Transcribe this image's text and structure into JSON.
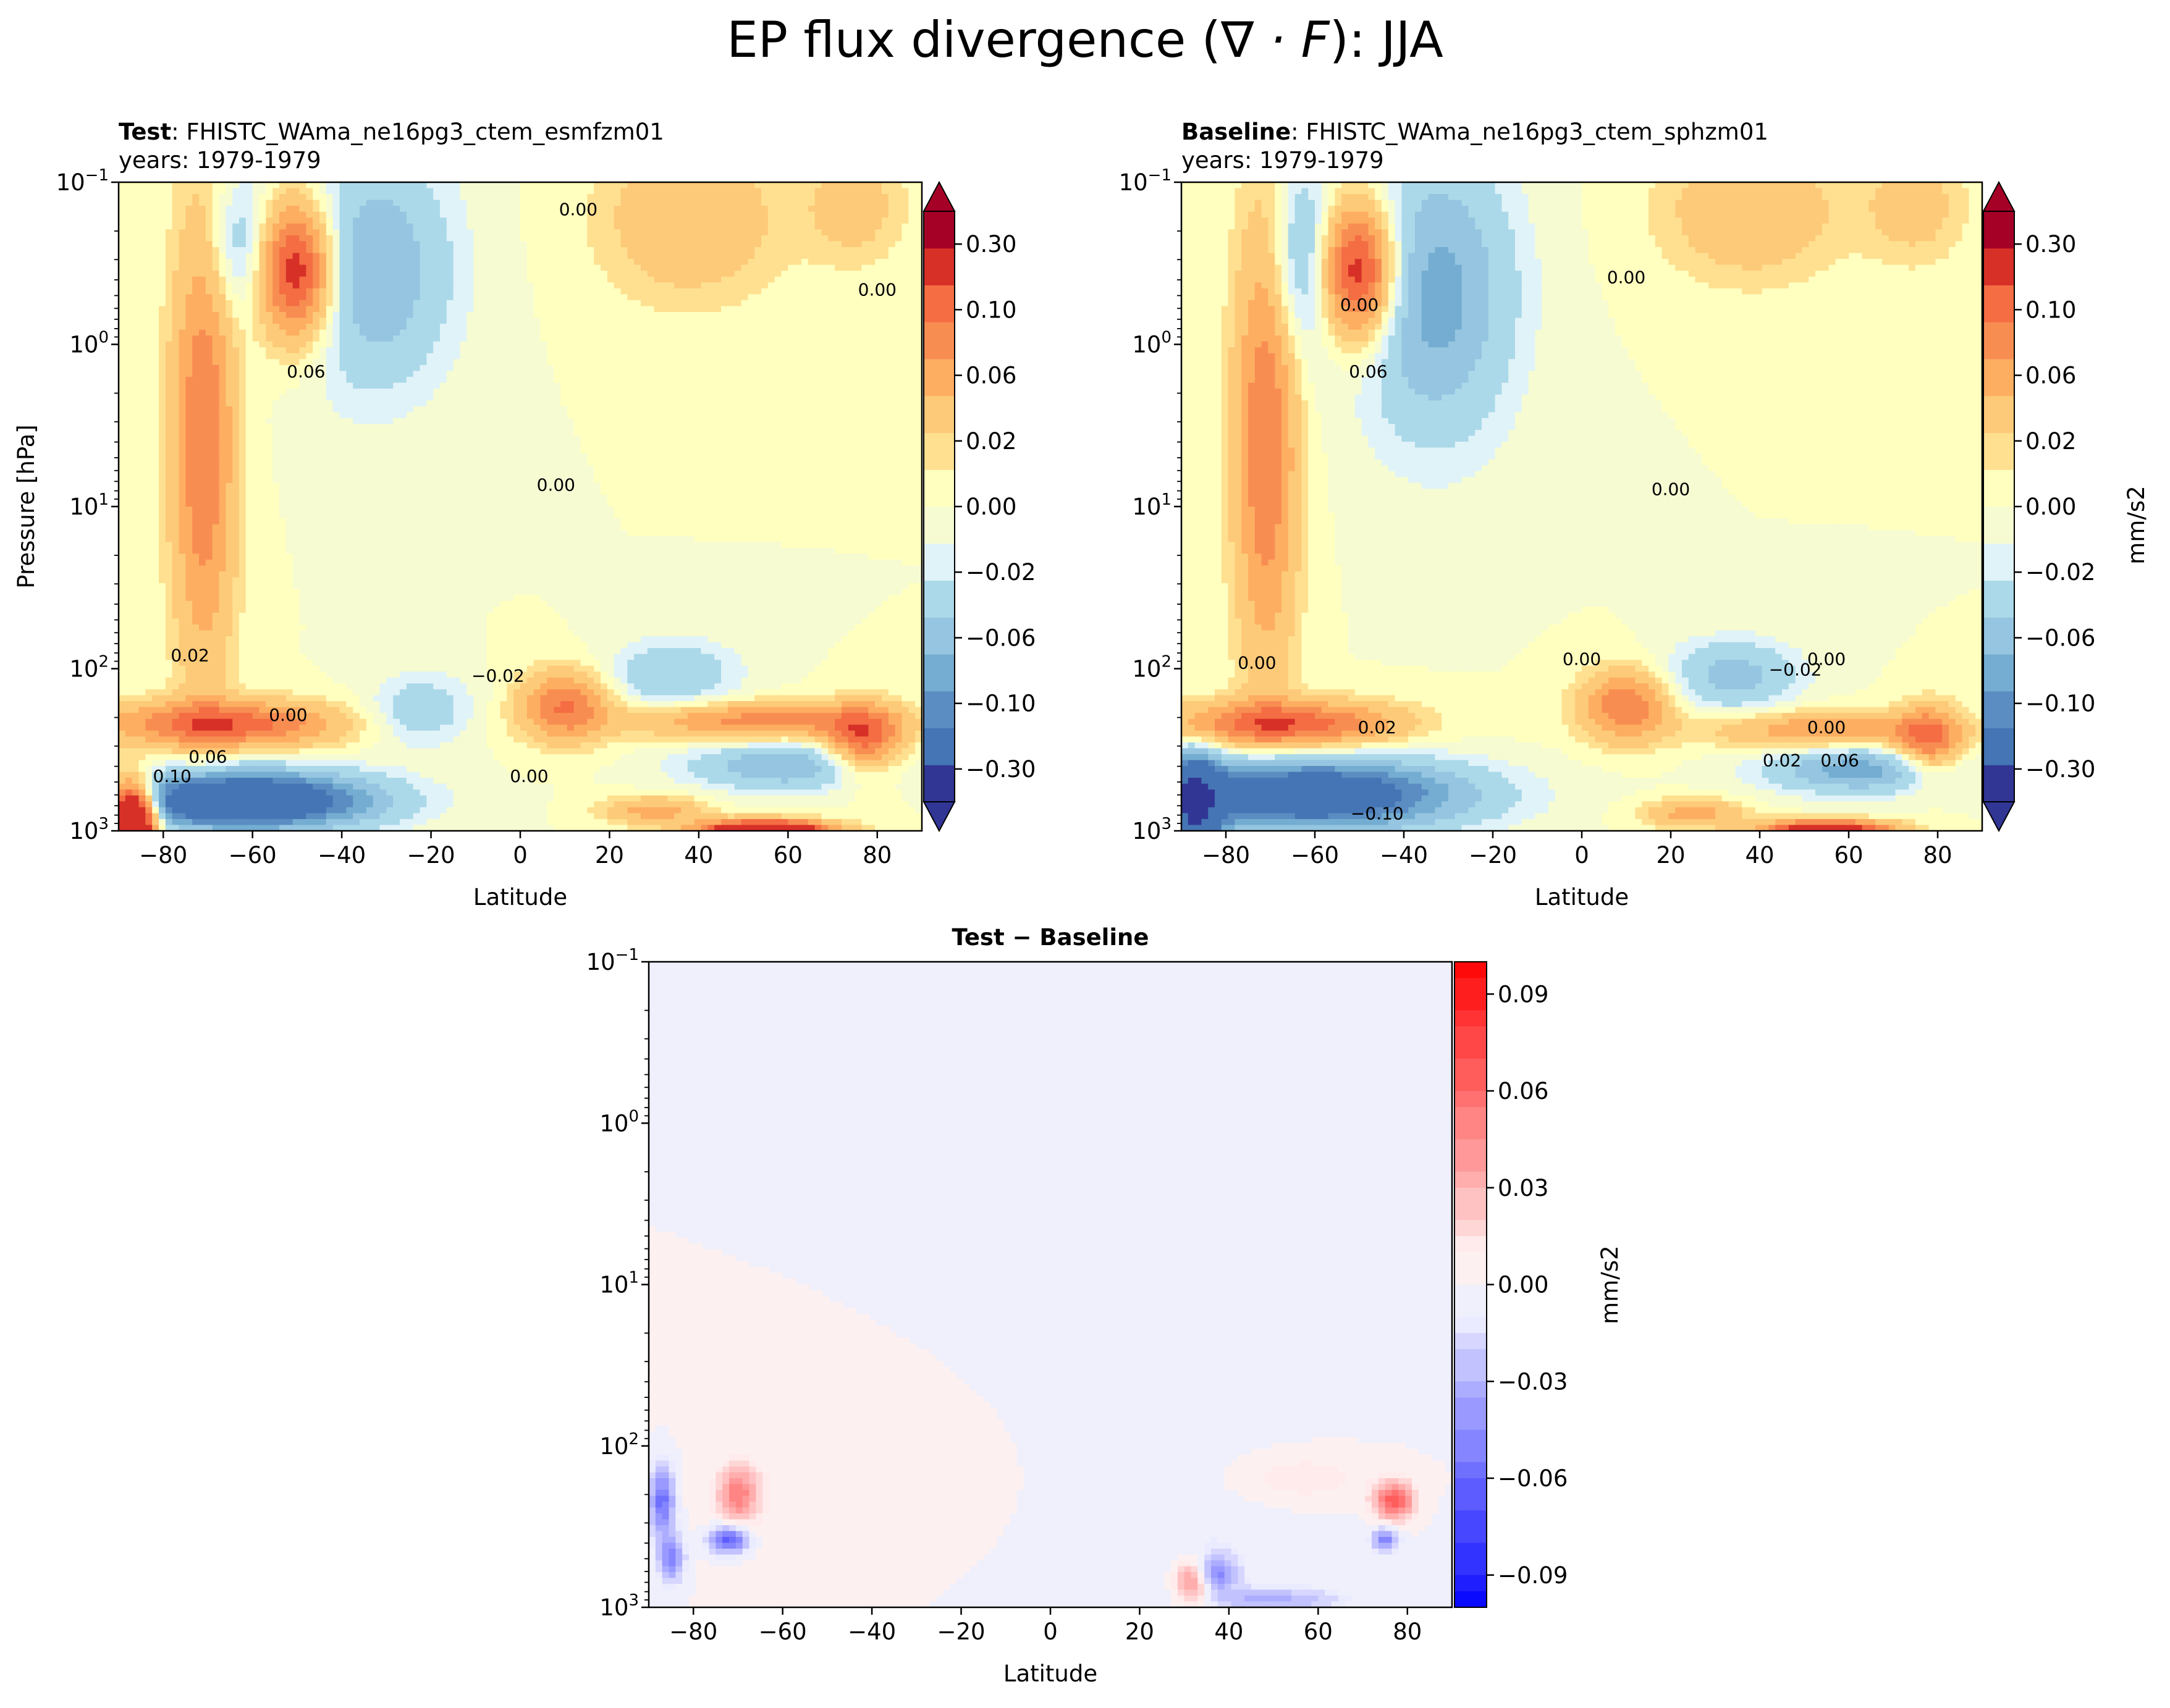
{
  "figure": {
    "title_text": "EP flux divergence (",
    "title_math": "∇ · F",
    "title_end": "): JJA"
  },
  "chart_data": [
    {
      "type": "heatmap",
      "panel": "test",
      "title_bold": "Test",
      "title_sep": ": ",
      "title_rest": "FHISTC_WAma_ne16pg3_ctem_esmfzm01",
      "subtitle": "years: 1979-1979",
      "xlabel": "Latitude",
      "ylabel": "Pressure [hPa]",
      "xlim": [
        -90,
        90
      ],
      "ylim": [
        1000,
        0.1
      ],
      "yscale": "log",
      "x_ticks": [
        "−80",
        "−60",
        "−40",
        "−20",
        "0",
        "20",
        "40",
        "60",
        "80"
      ],
      "x_tick_values": [
        -80,
        -60,
        -40,
        -20,
        0,
        20,
        40,
        60,
        80
      ],
      "y_ticks": [
        {
          "base": "10",
          "exp": "−1",
          "value": 0.1
        },
        {
          "base": "10",
          "exp": "0",
          "value": 1
        },
        {
          "base": "10",
          "exp": "1",
          "value": 10
        },
        {
          "base": "10",
          "exp": "2",
          "value": 100
        },
        {
          "base": "10",
          "exp": "3",
          "value": 1000
        }
      ],
      "colorbar": {
        "ticks": [
          "0.30",
          "0.10",
          "0.06",
          "0.02",
          "0.00",
          "−0.02",
          "−0.06",
          "−0.10",
          "−0.30"
        ],
        "levels": [
          -0.3,
          -0.2,
          -0.1,
          -0.08,
          -0.06,
          -0.04,
          -0.02,
          -0.01,
          0.0,
          0.01,
          0.02,
          0.04,
          0.06,
          0.08,
          0.1,
          0.2,
          0.3
        ],
        "colors": [
          "#313695",
          "#4575b4",
          "#5b8dc2",
          "#74add1",
          "#95c5e0",
          "#abd9e9",
          "#e0f3f8",
          "#f6fbd2",
          "#ffffbf",
          "#fee090",
          "#fdca79",
          "#fdae61",
          "#f88d52",
          "#f46d43",
          "#d73027",
          "#a50026"
        ],
        "extend": "both",
        "label": ""
      },
      "contour_labels": [
        {
          "text": "0.00",
          "lat": 13,
          "p": 0.16
        },
        {
          "text": "0.00",
          "lat": 80,
          "p": 0.5
        },
        {
          "text": "0.06",
          "lat": -48,
          "p": 1.6
        },
        {
          "text": "0.00",
          "lat": 8,
          "p": 8.0
        },
        {
          "text": "0.02",
          "lat": -74,
          "p": 90
        },
        {
          "text": "0.00",
          "lat": -52,
          "p": 210
        },
        {
          "text": "−0.02",
          "lat": -5,
          "p": 120
        },
        {
          "text": "0.00",
          "lat": 2,
          "p": 500
        },
        {
          "text": "0.06",
          "lat": -70,
          "p": 380
        },
        {
          "text": "0.10",
          "lat": -78,
          "p": 500
        }
      ],
      "fields": [
        {
          "lat": -71,
          "p": 4,
          "slat": 5,
          "slogp": 1.0,
          "a": 0.08
        },
        {
          "lat": -50,
          "p": 0.35,
          "slat": 6,
          "slogp": 0.3,
          "a": 0.13
        },
        {
          "lat": -63,
          "p": 0.25,
          "slat": 5,
          "slogp": 0.3,
          "a": -0.04
        },
        {
          "lat": -33,
          "p": 0.35,
          "slat": 12,
          "slogp": 0.5,
          "a": -0.06
        },
        {
          "lat": 38,
          "p": 0.17,
          "slat": 14,
          "slogp": 0.35,
          "a": 0.04
        },
        {
          "lat": 75,
          "p": 0.14,
          "slat": 8,
          "slogp": 0.25,
          "a": 0.03
        },
        {
          "lat": -62,
          "p": 220,
          "slat": 22,
          "slogp": 0.1,
          "a": 0.1
        },
        {
          "lat": -38,
          "p": 220,
          "slat": 14,
          "slogp": 0.1,
          "a": -0.03
        },
        {
          "lat": -22,
          "p": 180,
          "slat": 8,
          "slogp": 0.15,
          "a": -0.035
        },
        {
          "lat": 10,
          "p": 170,
          "slat": 7,
          "slogp": 0.15,
          "a": 0.08
        },
        {
          "lat": 34,
          "p": 110,
          "slat": 10,
          "slogp": 0.15,
          "a": -0.04
        },
        {
          "lat": 53,
          "p": 210,
          "slat": 20,
          "slogp": 0.08,
          "a": 0.07
        },
        {
          "lat": 77,
          "p": 280,
          "slat": 6,
          "slogp": 0.15,
          "a": 0.09
        },
        {
          "lat": 60,
          "p": 400,
          "slat": 15,
          "slogp": 0.1,
          "a": -0.06
        },
        {
          "lat": -63,
          "p": 650,
          "slat": 20,
          "slogp": 0.12,
          "a": -0.18
        },
        {
          "lat": -87,
          "p": 800,
          "slat": 4,
          "slogp": 0.15,
          "a": 0.25
        },
        {
          "lat": 30,
          "p": 750,
          "slat": 8,
          "slogp": 0.06,
          "a": 0.05
        },
        {
          "lat": 55,
          "p": 980,
          "slat": 10,
          "slogp": 0.04,
          "a": 0.18
        }
      ]
    },
    {
      "type": "heatmap",
      "panel": "baseline",
      "title_bold": "Baseline",
      "title_sep": ": ",
      "title_rest": "FHISTC_WAma_ne16pg3_ctem_sphzm01",
      "subtitle": "years: 1979-1979",
      "xlabel": "Latitude",
      "ylabel": "",
      "xlim": [
        -90,
        90
      ],
      "ylim": [
        1000,
        0.1
      ],
      "yscale": "log",
      "x_ticks": [
        "−80",
        "−60",
        "−40",
        "−20",
        "0",
        "20",
        "40",
        "60",
        "80"
      ],
      "x_tick_values": [
        -80,
        -60,
        -40,
        -20,
        0,
        20,
        40,
        60,
        80
      ],
      "y_ticks": [
        {
          "base": "10",
          "exp": "−1",
          "value": 0.1
        },
        {
          "base": "10",
          "exp": "0",
          "value": 1
        },
        {
          "base": "10",
          "exp": "1",
          "value": 10
        },
        {
          "base": "10",
          "exp": "2",
          "value": 100
        },
        {
          "base": "10",
          "exp": "3",
          "value": 1000
        }
      ],
      "colorbar": {
        "ticks": [
          "0.30",
          "0.10",
          "0.06",
          "0.02",
          "0.00",
          "−0.02",
          "−0.06",
          "−0.10",
          "−0.30"
        ],
        "levels": [
          -0.3,
          -0.2,
          -0.1,
          -0.08,
          -0.06,
          -0.04,
          -0.02,
          -0.01,
          0.0,
          0.01,
          0.02,
          0.04,
          0.06,
          0.08,
          0.1,
          0.2,
          0.3
        ],
        "colors": [
          "#313695",
          "#4575b4",
          "#5b8dc2",
          "#74add1",
          "#95c5e0",
          "#abd9e9",
          "#e0f3f8",
          "#f6fbd2",
          "#ffffbf",
          "#fee090",
          "#fdca79",
          "#fdae61",
          "#f88d52",
          "#f46d43",
          "#d73027",
          "#a50026"
        ],
        "extend": "both",
        "label": "mm/s2"
      },
      "contour_labels": [
        {
          "text": "0.00",
          "lat": -50,
          "p": 0.62
        },
        {
          "text": "0.06",
          "lat": -48,
          "p": 1.6
        },
        {
          "text": "0.00",
          "lat": 10,
          "p": 0.42
        },
        {
          "text": "0.00",
          "lat": 20,
          "p": 8.5
        },
        {
          "text": "0.00",
          "lat": -73,
          "p": 100
        },
        {
          "text": "0.00",
          "lat": 0,
          "p": 95
        },
        {
          "text": "0.00",
          "lat": 55,
          "p": 95
        },
        {
          "text": "−0.02",
          "lat": 48,
          "p": 110
        },
        {
          "text": "0.02",
          "lat": -46,
          "p": 250
        },
        {
          "text": "0.02",
          "lat": 45,
          "p": 400
        },
        {
          "text": "0.06",
          "lat": 58,
          "p": 400
        },
        {
          "text": "0.00",
          "lat": 55,
          "p": 250
        },
        {
          "text": "−0.10",
          "lat": -46,
          "p": 850
        }
      ],
      "fields": [
        {
          "lat": -71,
          "p": 4,
          "slat": 5,
          "slogp": 1.0,
          "a": 0.08
        },
        {
          "lat": -50,
          "p": 0.35,
          "slat": 6,
          "slogp": 0.3,
          "a": 0.13
        },
        {
          "lat": -63,
          "p": 0.3,
          "slat": 5,
          "slogp": 0.4,
          "a": -0.05
        },
        {
          "lat": -33,
          "p": 0.5,
          "slat": 12,
          "slogp": 0.6,
          "a": -0.07
        },
        {
          "lat": 38,
          "p": 0.15,
          "slat": 14,
          "slogp": 0.3,
          "a": 0.04
        },
        {
          "lat": 75,
          "p": 0.14,
          "slat": 8,
          "slogp": 0.25,
          "a": 0.03
        },
        {
          "lat": -62,
          "p": 220,
          "slat": 22,
          "slogp": 0.1,
          "a": 0.1
        },
        {
          "lat": -38,
          "p": 220,
          "slat": 14,
          "slogp": 0.1,
          "a": -0.03
        },
        {
          "lat": 10,
          "p": 170,
          "slat": 7,
          "slogp": 0.15,
          "a": 0.08
        },
        {
          "lat": 34,
          "p": 110,
          "slat": 10,
          "slogp": 0.15,
          "a": -0.05
        },
        {
          "lat": 55,
          "p": 240,
          "slat": 18,
          "slogp": 0.08,
          "a": 0.06
        },
        {
          "lat": 78,
          "p": 280,
          "slat": 5,
          "slogp": 0.15,
          "a": 0.08
        },
        {
          "lat": 62,
          "p": 420,
          "slat": 14,
          "slogp": 0.1,
          "a": -0.07
        },
        {
          "lat": -62,
          "p": 600,
          "slat": 24,
          "slogp": 0.15,
          "a": -0.15
        },
        {
          "lat": -87,
          "p": 700,
          "slat": 4,
          "slogp": 0.2,
          "a": -0.18
        },
        {
          "lat": 25,
          "p": 780,
          "slat": 8,
          "slogp": 0.06,
          "a": 0.05
        },
        {
          "lat": 55,
          "p": 980,
          "slat": 10,
          "slogp": 0.04,
          "a": 0.15
        }
      ]
    },
    {
      "type": "heatmap",
      "panel": "difference",
      "title_bold": "Test − Baseline",
      "xlabel": "Latitude",
      "ylabel": "",
      "xlim": [
        -90,
        90
      ],
      "ylim": [
        1000,
        0.1
      ],
      "yscale": "log",
      "x_ticks": [
        "−80",
        "−60",
        "−40",
        "−20",
        "0",
        "20",
        "40",
        "60",
        "80"
      ],
      "x_tick_values": [
        -80,
        -60,
        -40,
        -20,
        0,
        20,
        40,
        60,
        80
      ],
      "y_ticks": [
        {
          "base": "10",
          "exp": "−1",
          "value": 0.1
        },
        {
          "base": "10",
          "exp": "0",
          "value": 1
        },
        {
          "base": "10",
          "exp": "1",
          "value": 10
        },
        {
          "base": "10",
          "exp": "2",
          "value": 100
        },
        {
          "base": "10",
          "exp": "3",
          "value": 1000
        }
      ],
      "colorbar": {
        "ticks": [
          "0.09",
          "0.06",
          "0.03",
          "0.00",
          "−0.03",
          "−0.06",
          "−0.09"
        ],
        "tick_values": [
          0.09,
          0.06,
          0.03,
          0.0,
          -0.03,
          -0.06,
          -0.09
        ],
        "range": [
          -0.1,
          0.1
        ],
        "label": "mm/s2"
      },
      "fields": [
        {
          "lat": -70,
          "p": 200,
          "slat": 3,
          "slogp": 0.12,
          "a": 0.05
        },
        {
          "lat": -87,
          "p": 220,
          "slat": 2,
          "slogp": 0.15,
          "a": -0.06
        },
        {
          "lat": -72,
          "p": 380,
          "slat": 3,
          "slogp": 0.06,
          "a": -0.07
        },
        {
          "lat": -85,
          "p": 500,
          "slat": 2,
          "slogp": 0.1,
          "a": -0.05
        },
        {
          "lat": 77,
          "p": 220,
          "slat": 3,
          "slogp": 0.08,
          "a": 0.07
        },
        {
          "lat": 75,
          "p": 380,
          "slat": 2,
          "slogp": 0.05,
          "a": -0.05
        },
        {
          "lat": 55,
          "p": 160,
          "slat": 12,
          "slogp": 0.12,
          "a": 0.015
        },
        {
          "lat": 32,
          "p": 700,
          "slat": 3,
          "slogp": 0.1,
          "a": 0.05
        },
        {
          "lat": 37,
          "p": 620,
          "slat": 3,
          "slogp": 0.08,
          "a": -0.05
        },
        {
          "lat": 50,
          "p": 900,
          "slat": 10,
          "slogp": 0.05,
          "a": -0.03
        },
        {
          "lat": 25,
          "p": 300,
          "slat": 25,
          "slogp": 0.5,
          "a": -0.008
        },
        {
          "lat": -40,
          "p": 200,
          "slat": 25,
          "slogp": 0.3,
          "a": 0.008
        }
      ]
    }
  ]
}
